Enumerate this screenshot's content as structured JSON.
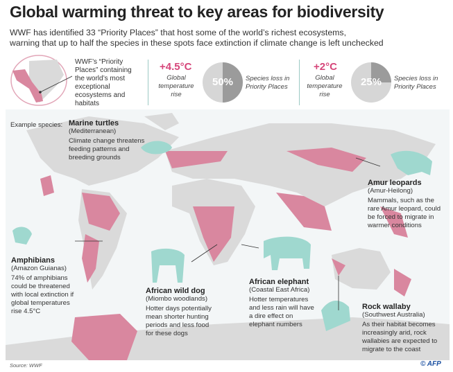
{
  "title": "Global warming threat to key areas for biodiversity",
  "subtitle_lines": [
    "WWF has identified 33 “Priority Places” that host some of the world’s richest ecosystems,",
    "warning that up to half the species in these spots face extinction if climate change is left unchecked"
  ],
  "legend": {
    "text": "WWF’s “Priority Places” containing the world’s most exceptional ecosystems and habitats"
  },
  "scenarios": [
    {
      "temp": "+4.5°C",
      "label": "Global temperature rise",
      "loss_percent": 50,
      "loss_label": "50%",
      "loss_text": "Species loss in Priority Places"
    },
    {
      "temp": "+2°C",
      "label": "Global temperature rise",
      "loss_percent": 25,
      "loss_label": "25%",
      "loss_text": "Species loss in Priority Places"
    }
  ],
  "example_label": "Example species:",
  "species": [
    {
      "name": "Marine turtles",
      "region": "(Mediterranean)",
      "text": "Climate change threatens feeding patterns and breeding grounds"
    },
    {
      "name": "Amur leopards",
      "region": "(Amur-Heilong)",
      "text": "Mammals, such as the rare Amur leopard, could be forced to migrate in warmer conditions"
    },
    {
      "name": "Amphibians",
      "region": "(Amazon Guianas)",
      "text": "74% of amphibians could be threatened with local extinction if global temperatures rise 4.5°C"
    },
    {
      "name": "African wild dog",
      "region": "(Miombo woodlands)",
      "text": "Hotter days potentially mean shorter hunting periods and less food for these dogs"
    },
    {
      "name": "African elephant",
      "region": "(Coastal East Africa)",
      "text": "Hotter temperatures and less rain will have a dire effect on elephant numbers"
    },
    {
      "name": "Rock wallaby",
      "region": "(Southwest Australia)",
      "text": "As their habitat becomes increasingly arid, rock wallabies are expected to migrate to the coast"
    }
  ],
  "source": "Source: WWF",
  "credit": "© AFP",
  "colors": {
    "priority": "#d9879f",
    "land": "#dadada",
    "animal": "#9fd8cf",
    "accent": "#d6467a",
    "pie_dark": "#9b9b9b",
    "pie_light": "#d6d6d6"
  }
}
